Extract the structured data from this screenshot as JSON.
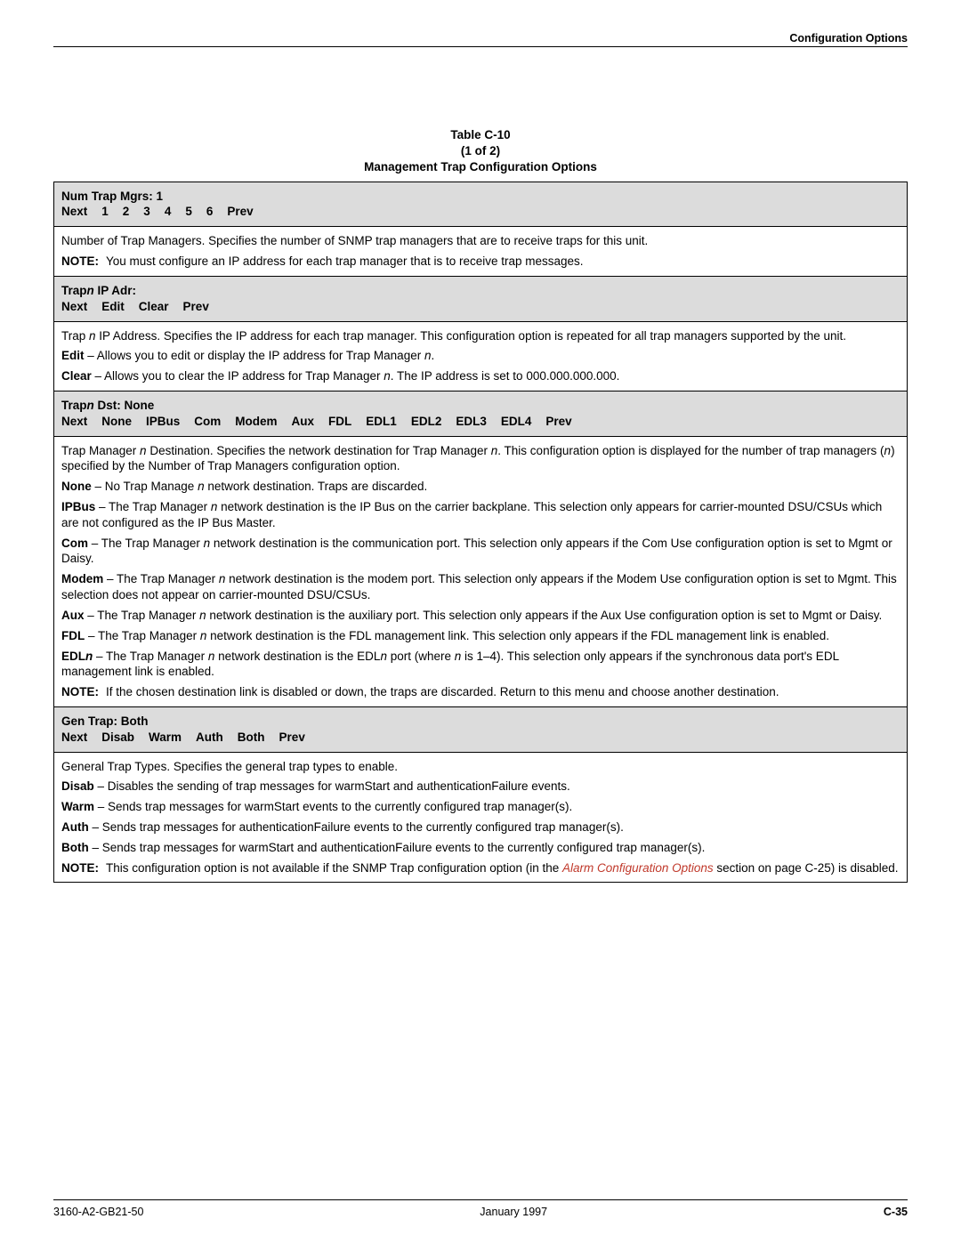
{
  "runningHead": "Configuration Options",
  "tableLabel": "Table C-10",
  "tablePart": "(1 of 2)",
  "tableTitle": "Management Trap Configuration Options",
  "s1": {
    "title": "Num Trap Mgrs: 1",
    "menu": [
      "Next",
      "1",
      "2",
      "3",
      "4",
      "5",
      "6",
      "Prev"
    ],
    "p1": "Number of Trap Managers. Specifies the number of SNMP trap managers that are to receive traps for this unit.",
    "noteLabel": "NOTE:",
    "note": "You must configure an IP address for each trap manager that is to receive trap messages."
  },
  "s2": {
    "titlePre": "Trap",
    "titleN": "n",
    "titlePost": " IP Adr:",
    "menu": [
      "Next",
      "Edit",
      "Clear",
      "Prev"
    ],
    "p1a": "Trap ",
    "p1n": "n",
    "p1b": " IP Address. Specifies the IP address for each trap manager. This configuration option is repeated for all trap managers supported by the unit.",
    "editLbl": "Edit",
    "editTxt": " – Allows you to edit or display the IP address for Trap Manager ",
    "editN": "n",
    "editEnd": ".",
    "clearLbl": "Clear",
    "clearTxt": " – Allows you to clear the IP address for Trap Manager ",
    "clearN": "n",
    "clearEnd": ". The IP address is set to 000.000.000.000."
  },
  "s3": {
    "titlePre": "Trap",
    "titleN": "n",
    "titlePost": " Dst: None",
    "menu": [
      "Next",
      "None",
      "IPBus",
      "Com",
      "Modem",
      "Aux",
      "FDL",
      "EDL1",
      "EDL2",
      "EDL3",
      "EDL4",
      "Prev"
    ],
    "p1a": "Trap Manager ",
    "p1n1": "n",
    "p1b": " Destination. Specifies the network destination for Trap Manager ",
    "p1n2": "n",
    "p1c": ". This configuration option is displayed for the number of trap managers (",
    "p1n3": "n",
    "p1d": ") specified by the Number of Trap Managers configuration option.",
    "noneLbl": "None",
    "noneTxt": " – No Trap Manage ",
    "noneN": "n",
    "noneEnd": " network destination. Traps are discarded.",
    "ipbusLbl": "IPBus",
    "ipbusTxt": " – The Trap Manager ",
    "ipbusN": "n",
    "ipbusEnd": " network destination is the IP Bus on the carrier backplane. This selection only appears for carrier-mounted DSU/CSUs which are not configured as the IP Bus Master.",
    "comLbl": "Com",
    "comTxt": " – The Trap Manager ",
    "comN": "n",
    "comEnd": " network destination is the communication port. This selection only appears if the Com Use configuration option is set to Mgmt or Daisy.",
    "modemLbl": "Modem",
    "modemTxt": " – The Trap Manager ",
    "modemN": "n",
    "modemEnd": " network destination is the modem port. This selection only appears if the Modem Use configuration option is set to Mgmt. This selection does not appear on carrier-mounted DSU/CSUs.",
    "auxLbl": "Aux",
    "auxTxt": " – The Trap Manager ",
    "auxN": "n",
    "auxEnd": " network destination is the auxiliary port. This selection only appears if the Aux Use configuration option is set to Mgmt or Daisy.",
    "fdlLbl": "FDL",
    "fdlTxt": " – The Trap Manager ",
    "fdlN": "n",
    "fdlEnd": " network destination is the FDL management link. This selection only appears if the FDL management link is enabled.",
    "edlLblPre": "EDL",
    "edlLblN": "n",
    "edlTxt1": " – The Trap Manager ",
    "edlN1": "n",
    "edlTxt2": " network destination is the EDL",
    "edlN2": "n",
    "edlTxt3": " port (where ",
    "edlN3": "n",
    "edlTxt4": " is 1–4). This selection only appears if the synchronous data port's EDL management link is enabled.",
    "noteLabel": "NOTE:",
    "note": "If the chosen destination link is disabled or down, the traps are discarded. Return to this menu and choose another destination."
  },
  "s4": {
    "title": "Gen Trap: Both",
    "menu": [
      "Next",
      "Disab",
      "Warm",
      "Auth",
      "Both",
      "Prev"
    ],
    "p1": "General Trap Types. Specifies the general trap types to enable.",
    "disabLbl": "Disab",
    "disabTxt": " – Disables the sending of trap messages for warmStart and authenticationFailure events.",
    "warmLbl": "Warm",
    "warmTxt": " – Sends trap messages for warmStart events to the currently configured trap manager(s).",
    "authLbl": "Auth",
    "authTxt": " – Sends trap messages for authenticationFailure events to the currently configured trap manager(s).",
    "bothLbl": "Both",
    "bothTxt": " – Sends trap messages for warmStart and authenticationFailure events to the currently configured trap manager(s).",
    "noteLabel": "NOTE:",
    "notePre": "This configuration option is not available if the SNMP Trap configuration option (in the ",
    "noteLink": "Alarm Configuration Options",
    "notePost": " section on page C-25) is disabled."
  },
  "footer": {
    "left": "3160-A2-GB21-50",
    "mid": "January 1997",
    "right": "C-35"
  }
}
